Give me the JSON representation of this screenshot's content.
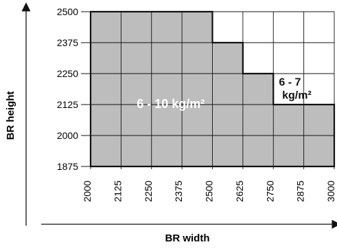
{
  "chart_data": {
    "type": "heatmap",
    "title": "",
    "xlabel": "BR width",
    "ylabel": "BR height",
    "x_ticks": [
      "2000",
      "2125",
      "2250",
      "2375",
      "2500",
      "2625",
      "2750",
      "2875",
      "3000"
    ],
    "y_ticks": [
      "1875",
      "2000",
      "2125",
      "2250",
      "2375",
      "2500"
    ],
    "grid": true,
    "regions": [
      {
        "label": "6 - 10 kg/m²",
        "fill": "#bdbdbd",
        "boundary_widths": [
          2000,
          2500,
          2625,
          2750,
          3000
        ],
        "max_height_by_width_band": [
          2500,
          2375,
          2250,
          2125
        ]
      },
      {
        "label": "6 - 7 kg/m²",
        "fill": "#ffffff",
        "outside_boundary": true
      }
    ]
  }
}
